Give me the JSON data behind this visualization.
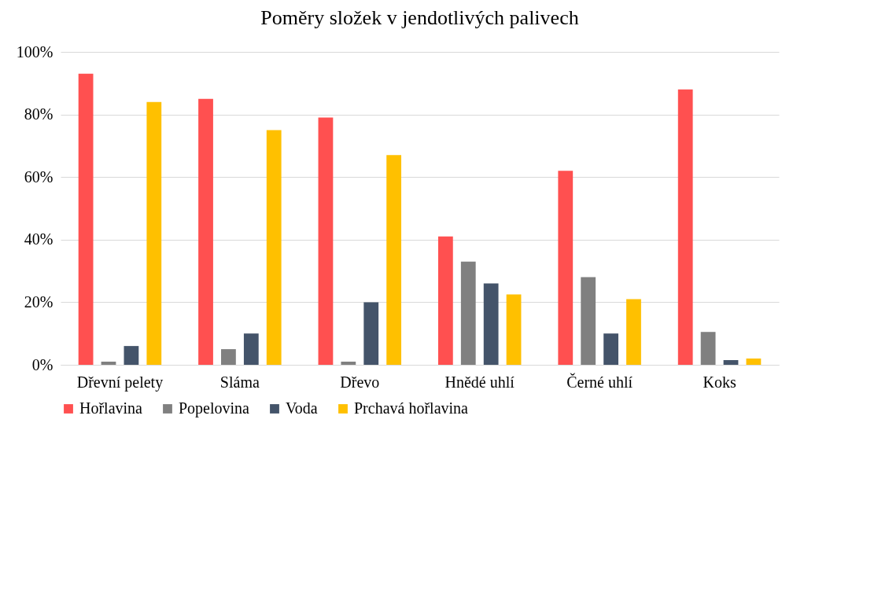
{
  "chart_data": {
    "type": "bar",
    "title": "Poměry složek v jendotlivých palivech",
    "categories": [
      "Dřevní pelety",
      "Sláma",
      "Dřevo",
      "Hnědé uhlí",
      "Černé uhlí",
      "Koks"
    ],
    "series": [
      {
        "name": "Hořlavina",
        "color": "#ff5050",
        "values": [
          93,
          85,
          79,
          41,
          62,
          88
        ]
      },
      {
        "name": "Popelovina",
        "color": "#808080",
        "values": [
          1,
          5,
          1,
          33,
          28,
          10.5
        ]
      },
      {
        "name": "Voda",
        "color": "#44546a",
        "values": [
          6,
          10,
          20,
          26,
          10,
          1.5
        ]
      },
      {
        "name": "Prchavá hořlavina",
        "color": "#ffc000",
        "values": [
          84,
          75,
          67,
          22.5,
          21,
          2
        ]
      }
    ],
    "ylim": [
      0,
      100
    ],
    "yticks": [
      {
        "value": 0,
        "label": "0%"
      },
      {
        "value": 20,
        "label": "20%"
      },
      {
        "value": 40,
        "label": "40%"
      },
      {
        "value": 60,
        "label": "60%"
      },
      {
        "value": 80,
        "label": "80%"
      },
      {
        "value": 100,
        "label": "100%"
      }
    ],
    "grid": "y",
    "legend": "bottom"
  }
}
